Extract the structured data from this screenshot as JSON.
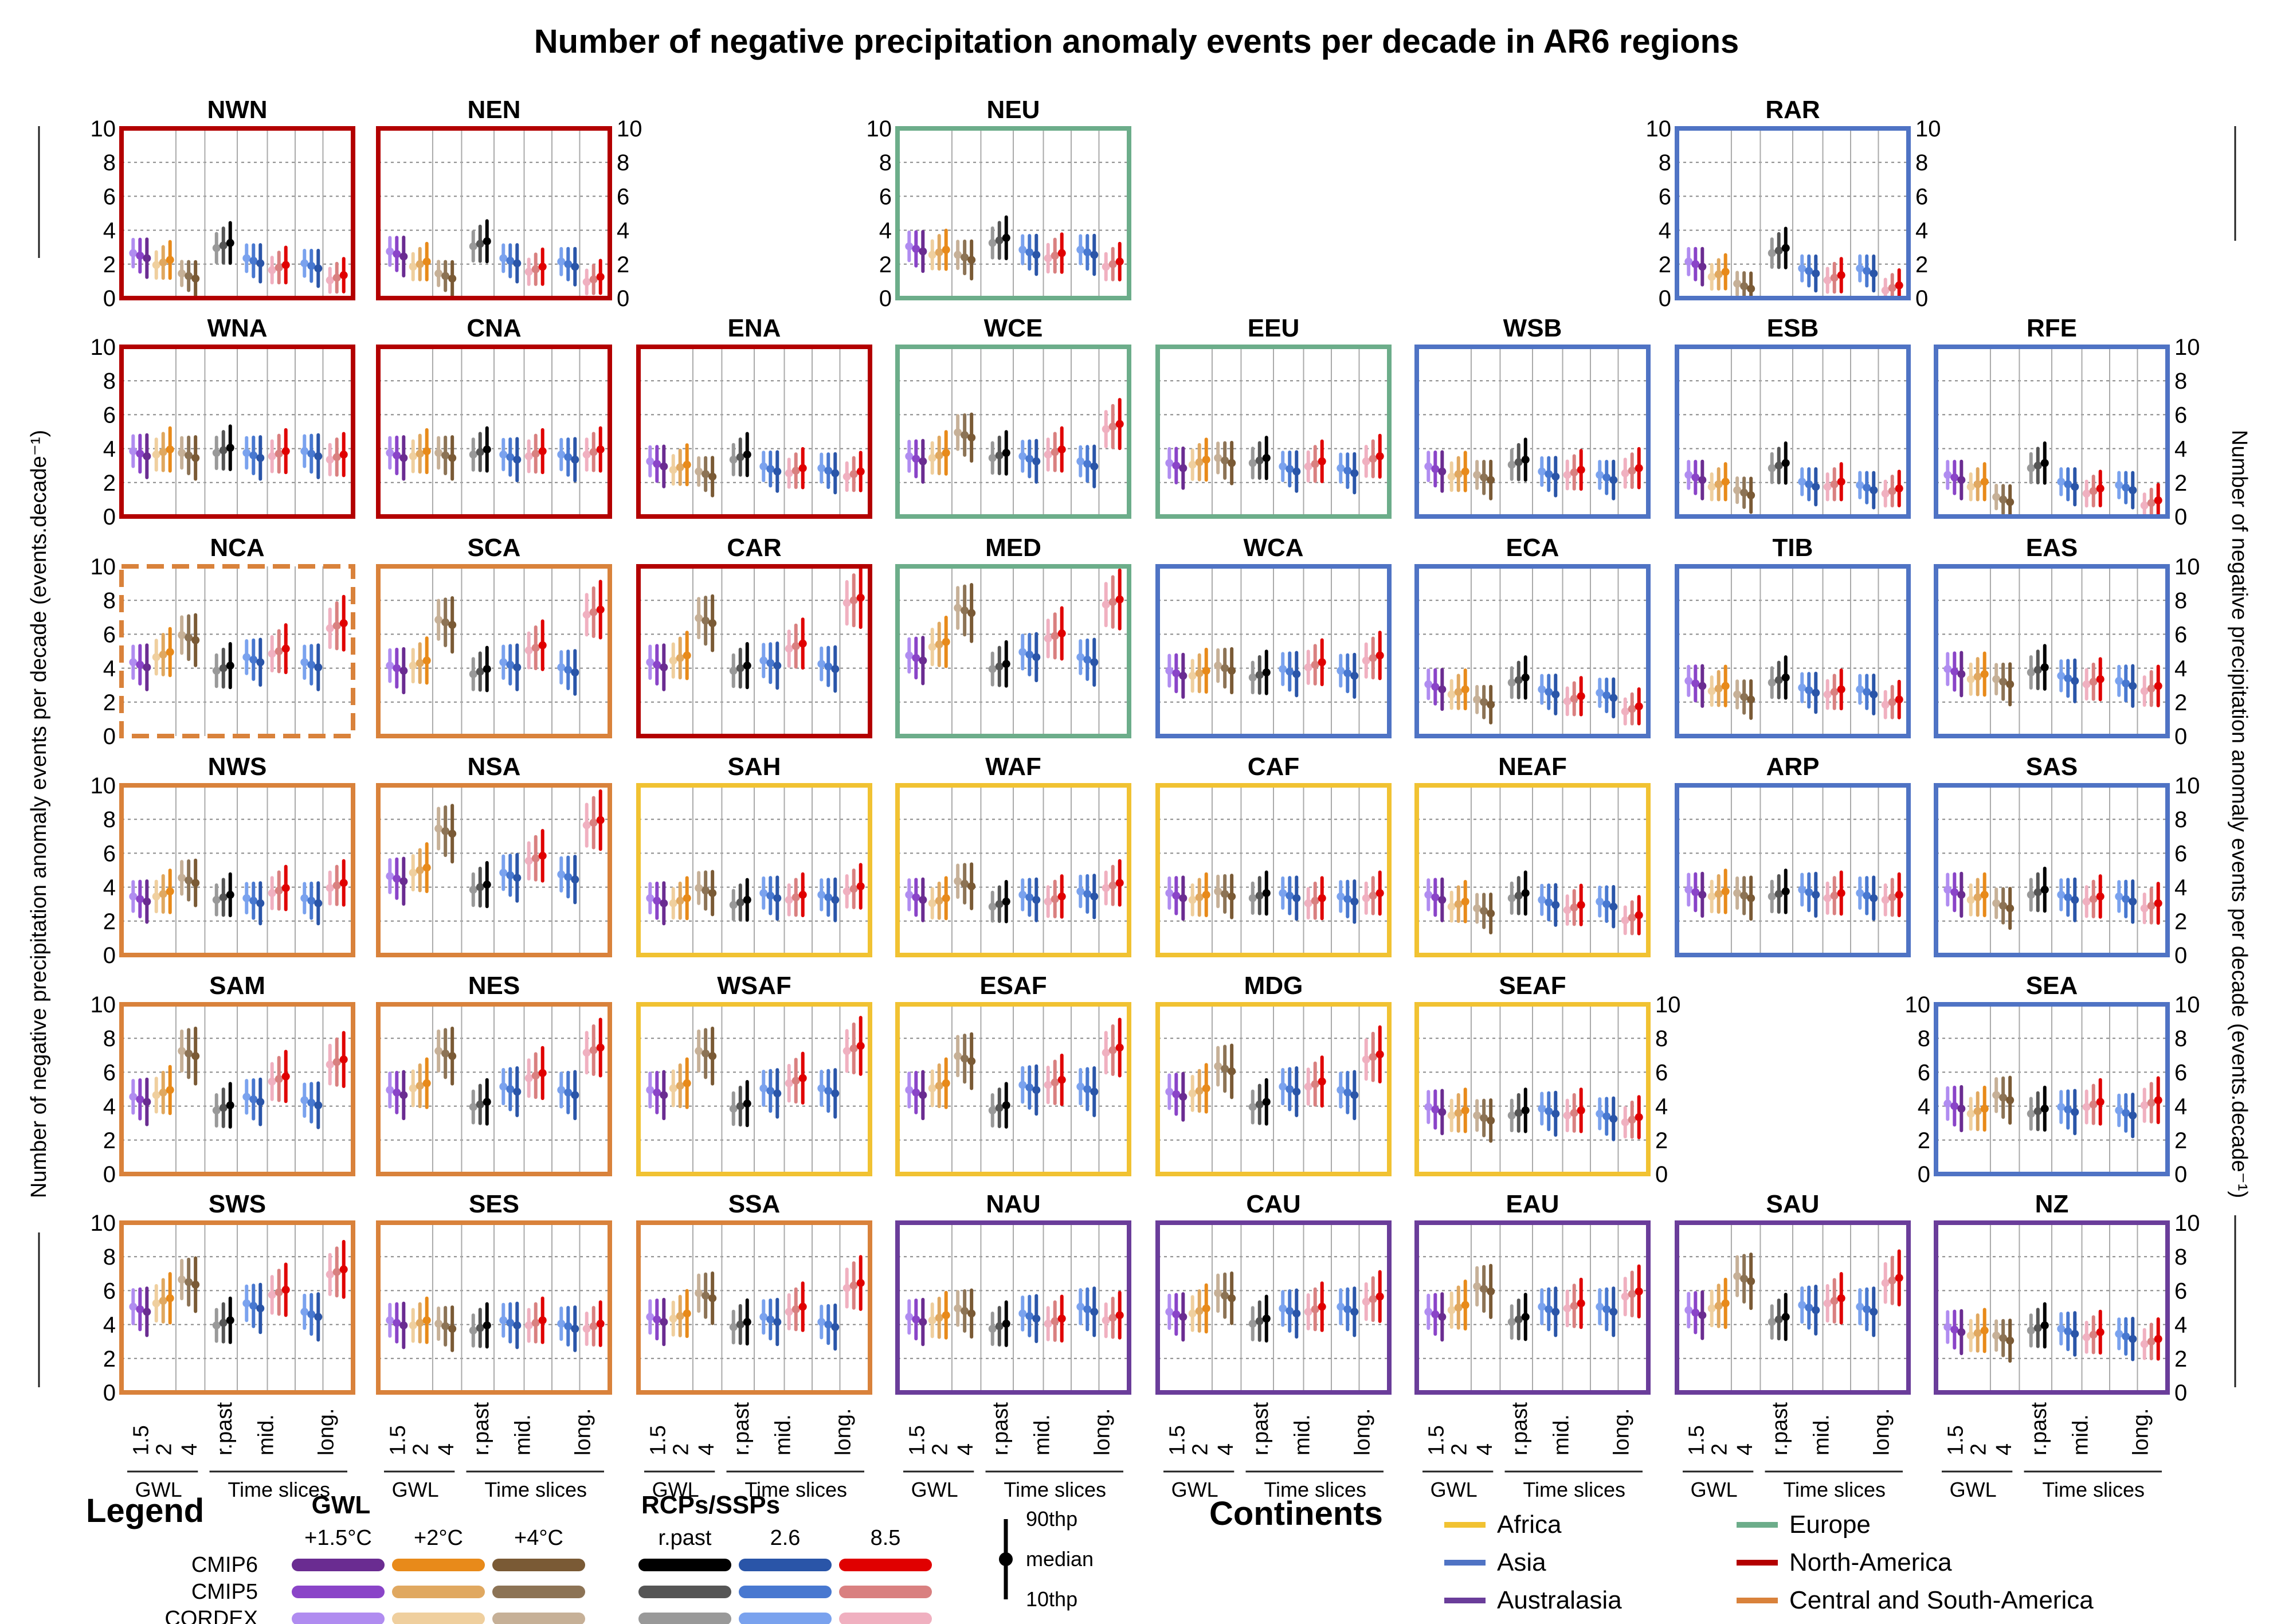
{
  "title": "Number of negative precipitation anomaly events per decade in AR6 regions",
  "ylabel_left": "Number of negative precipitation anomaly events per decade (events.decade⁻¹)",
  "ylabel_right": "Number of negative precipitation anomaly events per decade (events.decade⁻¹)",
  "x_ticks": [
    "1.5",
    "2",
    "4",
    "r.past",
    "mid.",
    "long."
  ],
  "x_groups": [
    "GWL",
    "Time slices"
  ],
  "legend": {
    "title": "Legend",
    "gwl_title": "GWL",
    "gwl_labels": [
      "+1.5°C",
      "+2°C",
      "+4°C"
    ],
    "rcp_title": "RCPs/SSPs",
    "rcp_labels": [
      "r.past",
      "2.6",
      "8.5"
    ],
    "rows": [
      "CMIP6",
      "CMIP5",
      "CORDEX"
    ],
    "percentile_top": "90thp",
    "percentile_mid": "median",
    "percentile_bottom": "10thp",
    "continents_title": "Continents",
    "continents": [
      {
        "name": "Africa",
        "color": "#f1c232"
      },
      {
        "name": "Asia",
        "color": "#4f73c4"
      },
      {
        "name": "Australasia",
        "color": "#6a3d9a"
      },
      {
        "name": "Europe",
        "color": "#6cad8a"
      },
      {
        "name": "North-America",
        "color": "#b30000"
      },
      {
        "name": "Central and South-America",
        "color": "#d9823b"
      }
    ]
  },
  "colors": {
    "gwl15": [
      "#6a2c91",
      "#8a44c8",
      "#b08cf0"
    ],
    "gwl2": [
      "#e88a1a",
      "#e0a860",
      "#efcf9e"
    ],
    "gwl4": [
      "#7a5a35",
      "#8c7355",
      "#c6b097"
    ],
    "rpast": [
      "#000000",
      "#555555",
      "#999999"
    ],
    "rcp26": [
      "#2a55a8",
      "#4878d0",
      "#7aa2ee"
    ],
    "rcp85": [
      "#e00000",
      "#d98080",
      "#f0b0c0"
    ]
  },
  "chart_data": {
    "type": "errorbar-panels",
    "ylim": [
      0,
      10
    ],
    "yticks": [
      0,
      2,
      4,
      6,
      8,
      10
    ],
    "grid": true,
    "categories": [
      "1.5",
      "2",
      "4",
      "r.past",
      "mid. 2.6",
      "mid. 8.5",
      "long. 2.6",
      "long. 8.5"
    ],
    "series_note": "each category shows CMIP6, CMIP5, CORDEX error bars; value = median",
    "regions": [
      {
        "name": "NWN",
        "continent": "North-America",
        "row": 0,
        "col": 0,
        "values": [
          2.5,
          2.1,
          1.3,
          3.1,
          2.2,
          1.8,
          1.9,
          1.2
        ]
      },
      {
        "name": "NEN",
        "continent": "North-America",
        "row": 0,
        "col": 1,
        "values": [
          2.6,
          2.0,
          1.3,
          3.2,
          2.2,
          1.7,
          2.0,
          1.1
        ]
      },
      {
        "name": "NEU",
        "continent": "Europe",
        "row": 0,
        "col": 3,
        "values": [
          2.9,
          2.7,
          2.4,
          3.4,
          2.7,
          2.5,
          2.7,
          2.0
        ]
      },
      {
        "name": "RAR",
        "continent": "Asia",
        "row": 0,
        "col": 6,
        "values": [
          2.0,
          1.4,
          0.7,
          2.8,
          1.6,
          1.2,
          1.6,
          0.6
        ]
      },
      {
        "name": "WNA",
        "continent": "North-America",
        "row": 1,
        "col": 0,
        "values": [
          3.7,
          3.8,
          3.6,
          3.9,
          3.6,
          3.7,
          3.7,
          3.5
        ]
      },
      {
        "name": "CNA",
        "continent": "North-America",
        "row": 1,
        "col": 1,
        "values": [
          3.6,
          3.7,
          3.6,
          3.8,
          3.5,
          3.7,
          3.5,
          3.8
        ]
      },
      {
        "name": "ENA",
        "continent": "North-America",
        "row": 1,
        "col": 2,
        "values": [
          3.1,
          2.9,
          2.5,
          3.5,
          2.8,
          2.7,
          2.7,
          2.5
        ]
      },
      {
        "name": "WCE",
        "continent": "Europe",
        "row": 1,
        "col": 3,
        "values": [
          3.4,
          3.6,
          4.8,
          3.6,
          3.4,
          3.8,
          3.1,
          5.3
        ]
      },
      {
        "name": "EEU",
        "continent": "Europe",
        "row": 1,
        "col": 4,
        "values": [
          3.0,
          3.2,
          3.3,
          3.3,
          2.8,
          3.1,
          2.7,
          3.4
        ]
      },
      {
        "name": "WSB",
        "continent": "Asia",
        "row": 1,
        "col": 5,
        "values": [
          2.8,
          2.5,
          2.3,
          3.2,
          2.5,
          2.6,
          2.3,
          2.7
        ]
      },
      {
        "name": "ESB",
        "continent": "Asia",
        "row": 1,
        "col": 6,
        "values": [
          2.3,
          1.9,
          1.4,
          3.0,
          1.9,
          1.9,
          1.7,
          1.5
        ]
      },
      {
        "name": "RFE",
        "continent": "Asia",
        "row": 1,
        "col": 7,
        "values": [
          2.3,
          1.9,
          1.0,
          3.0,
          1.9,
          1.5,
          1.7,
          0.8
        ]
      },
      {
        "name": "NCA",
        "continent": "Central and South-America",
        "row": 2,
        "col": 0,
        "values": [
          4.2,
          4.8,
          5.8,
          4.0,
          4.5,
          5.0,
          4.2,
          6.5
        ]
      },
      {
        "name": "SCA",
        "continent": "Central and South-America",
        "row": 2,
        "col": 1,
        "values": [
          4.0,
          4.3,
          6.7,
          3.8,
          4.2,
          5.2,
          3.9,
          7.3
        ]
      },
      {
        "name": "CAR",
        "continent": "North-America",
        "row": 2,
        "col": 2,
        "values": [
          4.2,
          4.6,
          6.8,
          4.0,
          4.3,
          5.3,
          4.1,
          8.0
        ]
      },
      {
        "name": "MED",
        "continent": "Europe",
        "row": 2,
        "col": 3,
        "values": [
          4.6,
          5.4,
          7.4,
          4.1,
          4.8,
          5.9,
          4.5,
          7.9
        ]
      },
      {
        "name": "WCA",
        "continent": "Asia",
        "row": 2,
        "col": 4,
        "values": [
          3.7,
          3.7,
          4.0,
          3.6,
          3.8,
          4.2,
          3.7,
          4.6
        ]
      },
      {
        "name": "ECA",
        "continent": "Asia",
        "row": 2,
        "col": 5,
        "values": [
          2.9,
          2.6,
          2.0,
          3.3,
          2.6,
          2.2,
          2.4,
          1.6
        ]
      },
      {
        "name": "TIB",
        "continent": "Asia",
        "row": 2,
        "col": 6,
        "values": [
          3.1,
          2.8,
          2.3,
          3.3,
          2.7,
          2.6,
          2.6,
          2.0
        ]
      },
      {
        "name": "EAS",
        "continent": "Asia",
        "row": 2,
        "col": 7,
        "values": [
          3.8,
          3.5,
          3.2,
          3.9,
          3.4,
          3.2,
          3.1,
          2.8
        ]
      },
      {
        "name": "NWS",
        "continent": "Central and South-America",
        "row": 3,
        "col": 0,
        "values": [
          3.3,
          3.6,
          4.4,
          3.4,
          3.2,
          3.8,
          3.2,
          4.1
        ]
      },
      {
        "name": "NSA",
        "continent": "Central and South-America",
        "row": 3,
        "col": 1,
        "values": [
          4.5,
          5.0,
          7.3,
          4.0,
          4.7,
          5.7,
          4.6,
          7.8
        ]
      },
      {
        "name": "SAH",
        "continent": "Africa",
        "row": 3,
        "col": 2,
        "values": [
          3.2,
          3.2,
          3.8,
          3.1,
          3.5,
          3.4,
          3.4,
          3.9
        ]
      },
      {
        "name": "WAF",
        "continent": "Africa",
        "row": 3,
        "col": 3,
        "values": [
          3.4,
          3.2,
          4.2,
          3.0,
          3.4,
          3.3,
          3.6,
          4.1
        ]
      },
      {
        "name": "CAF",
        "continent": "Africa",
        "row": 3,
        "col": 4,
        "values": [
          3.5,
          3.4,
          3.6,
          3.5,
          3.5,
          3.2,
          3.3,
          3.5
        ]
      },
      {
        "name": "NEAF",
        "continent": "Africa",
        "row": 3,
        "col": 5,
        "values": [
          3.4,
          3.0,
          2.6,
          3.5,
          3.1,
          2.8,
          3.0,
          2.2
        ]
      },
      {
        "name": "ARP",
        "continent": "Asia",
        "row": 3,
        "col": 6,
        "values": [
          3.7,
          3.6,
          3.5,
          3.6,
          3.7,
          3.5,
          3.5,
          3.4
        ]
      },
      {
        "name": "SAS",
        "continent": "Asia",
        "row": 3,
        "col": 7,
        "values": [
          3.7,
          3.4,
          2.9,
          3.7,
          3.4,
          3.3,
          3.3,
          2.9
        ]
      },
      {
        "name": "SAM",
        "continent": "Central and South-America",
        "row": 4,
        "col": 0,
        "values": [
          4.4,
          4.8,
          7.1,
          3.9,
          4.4,
          5.6,
          4.2,
          6.6
        ]
      },
      {
        "name": "NES",
        "continent": "Central and South-America",
        "row": 4,
        "col": 1,
        "values": [
          4.8,
          5.2,
          7.1,
          4.1,
          5.0,
          5.8,
          4.8,
          7.3
        ]
      },
      {
        "name": "WSAF",
        "continent": "Africa",
        "row": 4,
        "col": 2,
        "values": [
          4.8,
          5.2,
          7.1,
          4.0,
          4.9,
          5.5,
          4.9,
          7.4
        ]
      },
      {
        "name": "ESAF",
        "continent": "Africa",
        "row": 4,
        "col": 3,
        "values": [
          4.8,
          5.2,
          6.8,
          3.9,
          5.1,
          5.4,
          5.0,
          7.3
        ]
      },
      {
        "name": "MDG",
        "continent": "Africa",
        "row": 4,
        "col": 4,
        "values": [
          4.7,
          4.9,
          6.2,
          4.1,
          5.0,
          5.3,
          4.8,
          6.9
        ]
      },
      {
        "name": "SEAF",
        "continent": "Africa",
        "row": 4,
        "col": 5,
        "values": [
          3.8,
          3.6,
          3.3,
          3.6,
          3.7,
          3.6,
          3.4,
          3.2
        ]
      },
      {
        "name": "SEA",
        "continent": "Asia",
        "row": 4,
        "col": 7,
        "values": [
          4.0,
          3.7,
          4.5,
          3.7,
          3.8,
          4.1,
          3.6,
          4.2
        ]
      },
      {
        "name": "SWS",
        "continent": "Central and South-America",
        "row": 5,
        "col": 0,
        "values": [
          4.9,
          5.4,
          6.5,
          4.1,
          5.1,
          5.9,
          4.6,
          7.1
        ]
      },
      {
        "name": "SES",
        "continent": "Central and South-America",
        "row": 5,
        "col": 1,
        "values": [
          4.1,
          4.1,
          3.9,
          3.8,
          4.1,
          4.1,
          3.9,
          3.9
        ]
      },
      {
        "name": "SSA",
        "continent": "Central and South-America",
        "row": 5,
        "col": 2,
        "values": [
          4.3,
          4.5,
          5.7,
          4.0,
          4.3,
          4.9,
          4.0,
          6.3
        ]
      },
      {
        "name": "NAU",
        "continent": "Australasia",
        "row": 5,
        "col": 3,
        "values": [
          4.3,
          4.4,
          4.8,
          3.9,
          4.5,
          4.2,
          4.9,
          4.4
        ]
      },
      {
        "name": "CAU",
        "continent": "Australasia",
        "row": 5,
        "col": 4,
        "values": [
          4.6,
          4.8,
          5.7,
          4.2,
          4.8,
          4.9,
          4.9,
          5.5
        ]
      },
      {
        "name": "EAU",
        "continent": "Australasia",
        "row": 5,
        "col": 5,
        "values": [
          4.6,
          5.0,
          6.1,
          4.3,
          4.9,
          5.1,
          4.9,
          5.8
        ]
      },
      {
        "name": "SAU",
        "continent": "Australasia",
        "row": 5,
        "col": 6,
        "values": [
          4.7,
          5.1,
          6.7,
          4.3,
          5.0,
          5.4,
          4.9,
          6.6
        ]
      },
      {
        "name": "NZ",
        "continent": "Australasia",
        "row": 5,
        "col": 7,
        "values": [
          3.7,
          3.5,
          3.2,
          3.8,
          3.6,
          3.4,
          3.3,
          3.0
        ]
      }
    ]
  }
}
